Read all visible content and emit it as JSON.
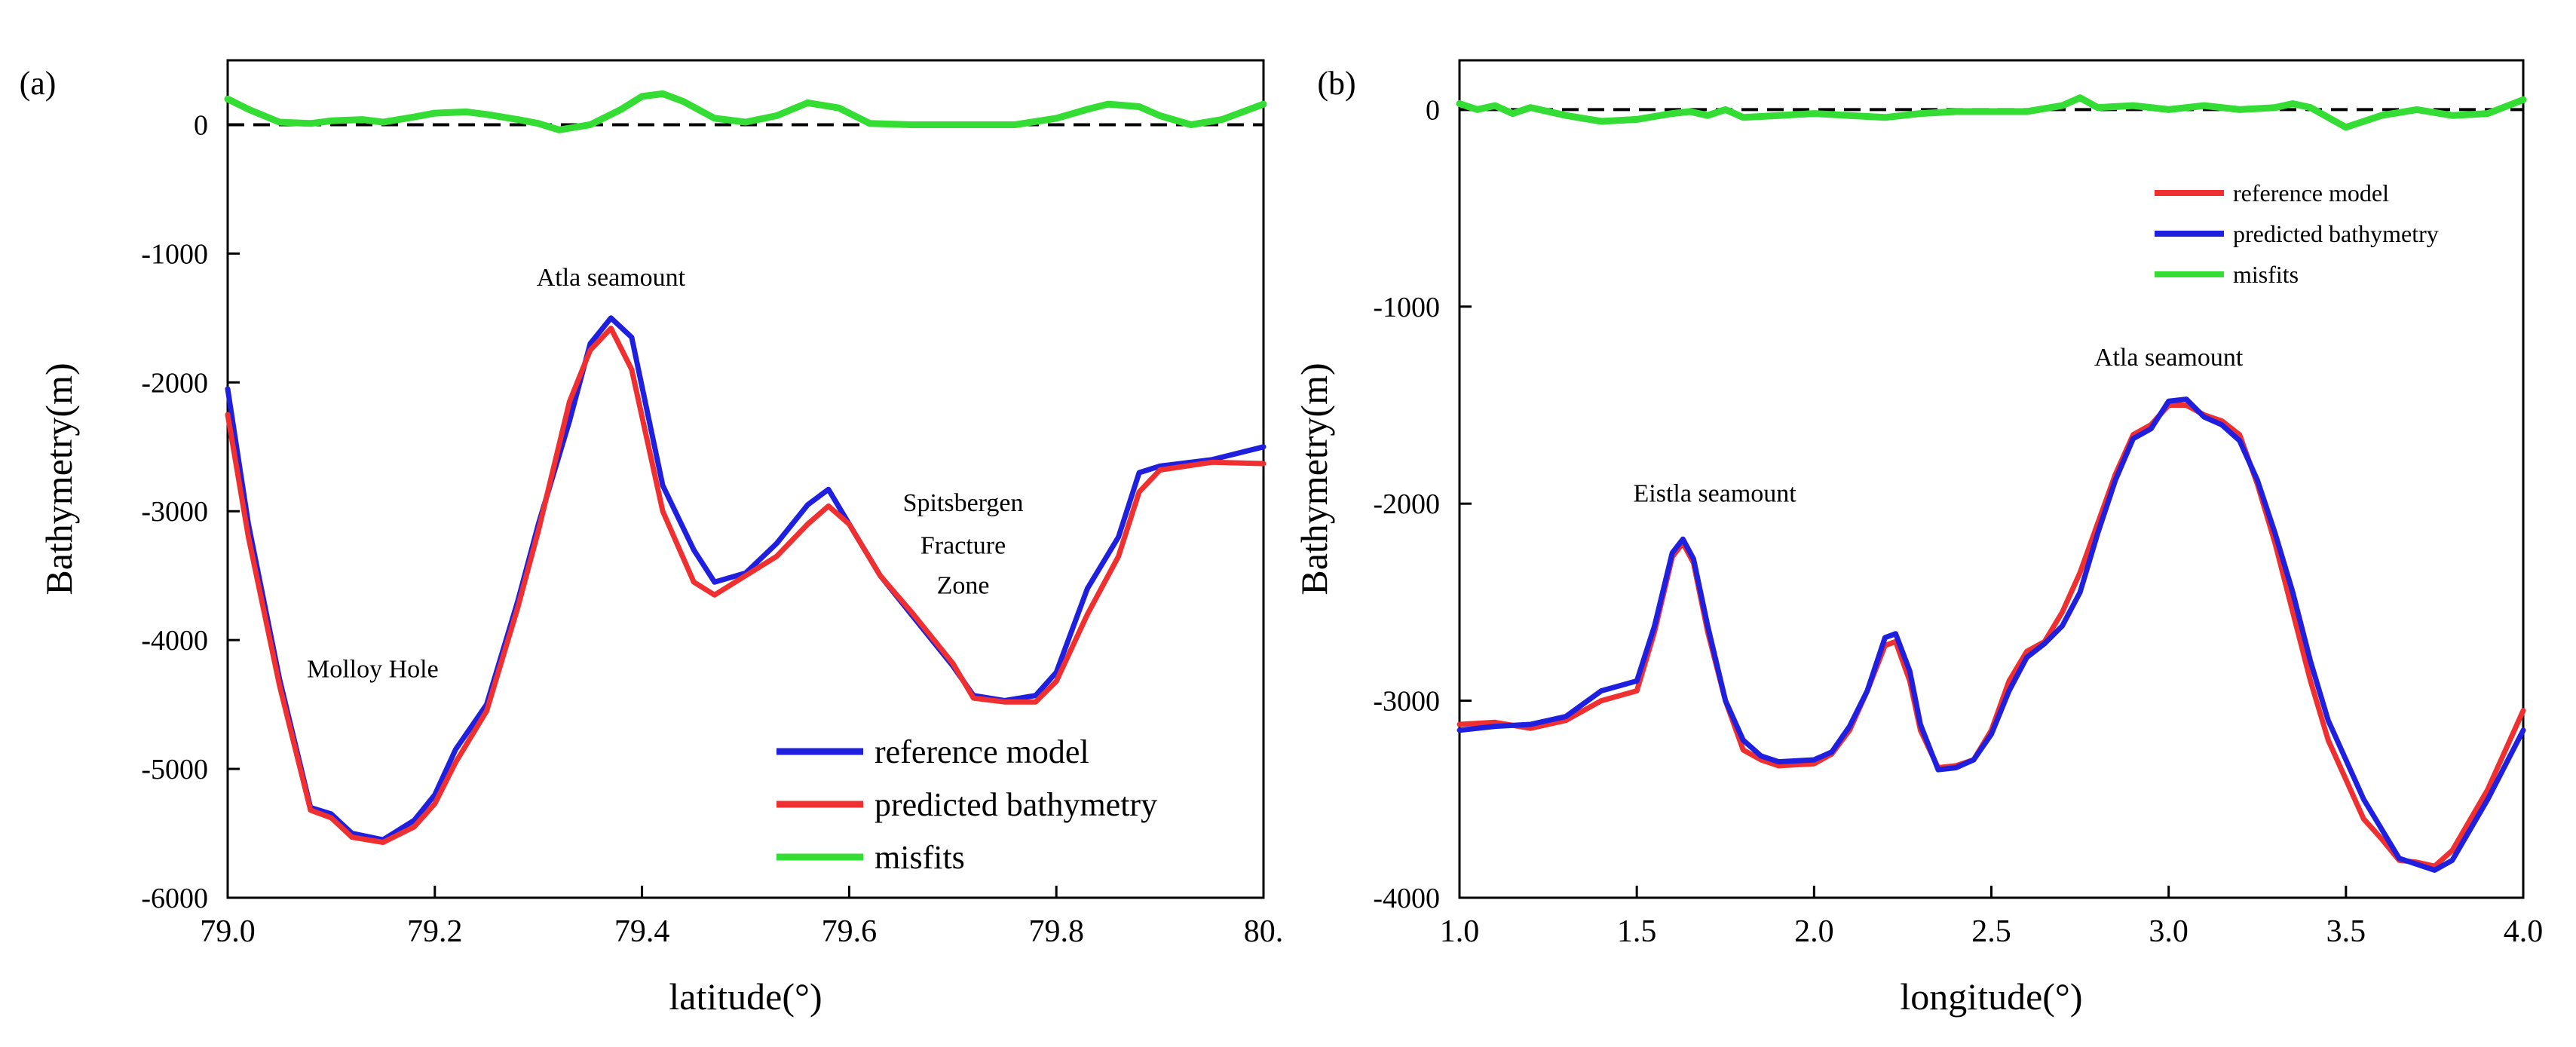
{
  "chart_data": [
    {
      "panel_label": "(a)",
      "type": "line",
      "xlabel": "latitude(°)",
      "ylabel": "Bathymetry(m)",
      "xlim": [
        79.0,
        80.0
      ],
      "ylim": [
        -6000,
        500
      ],
      "xticks": [
        79.0,
        79.2,
        79.4,
        79.6,
        79.8,
        80.0
      ],
      "xtick_labels": [
        "79.0",
        "79.2",
        "79.4",
        "79.6",
        "79.8",
        "80."
      ],
      "yticks": [
        -6000,
        -5000,
        -4000,
        -3000,
        -2000,
        -1000,
        0
      ],
      "ytick_labels": [
        "-6000",
        "-5000",
        "-4000",
        "-3000",
        "-2000",
        "-1000",
        "0"
      ],
      "zero_line": 0,
      "legend_position": "bottom-right",
      "annotations": [
        {
          "text": "Atla seamount",
          "x": 79.37,
          "y": -1250
        },
        {
          "text": "Spitsbergen",
          "x": 79.71,
          "y": -3000
        },
        {
          "text": "Fracture",
          "x": 79.71,
          "y": -3330
        },
        {
          "text": "Zone",
          "x": 79.71,
          "y": -3640
        },
        {
          "text": "Molloy Hole",
          "x": 79.14,
          "y": -4290
        }
      ],
      "series": [
        {
          "name": "reference model",
          "color": "#1f1fe0",
          "x": [
            79.0,
            79.02,
            79.05,
            79.08,
            79.1,
            79.12,
            79.15,
            79.18,
            79.2,
            79.22,
            79.25,
            79.28,
            79.3,
            79.33,
            79.35,
            79.37,
            79.39,
            79.42,
            79.45,
            79.47,
            79.5,
            79.53,
            79.56,
            79.58,
            79.6,
            79.63,
            79.66,
            79.7,
            79.72,
            79.75,
            79.78,
            79.8,
            79.83,
            79.86,
            79.88,
            79.9,
            79.95,
            80.0
          ],
          "y": [
            -2050,
            -3100,
            -4300,
            -5300,
            -5350,
            -5500,
            -5550,
            -5400,
            -5200,
            -4850,
            -4500,
            -3700,
            -3100,
            -2300,
            -1700,
            -1500,
            -1650,
            -2800,
            -3300,
            -3550,
            -3480,
            -3250,
            -2950,
            -2830,
            -3100,
            -3500,
            -3800,
            -4200,
            -4430,
            -4470,
            -4430,
            -4250,
            -3600,
            -3200,
            -2700,
            -2650,
            -2600,
            -2500
          ]
        },
        {
          "name": "predicted bathymetry",
          "color": "#f03030",
          "x": [
            79.0,
            79.02,
            79.05,
            79.08,
            79.1,
            79.12,
            79.15,
            79.18,
            79.2,
            79.22,
            79.25,
            79.28,
            79.3,
            79.33,
            79.35,
            79.37,
            79.39,
            79.42,
            79.45,
            79.47,
            79.5,
            79.53,
            79.56,
            79.58,
            79.6,
            79.63,
            79.66,
            79.7,
            79.72,
            79.75,
            79.78,
            79.8,
            79.83,
            79.86,
            79.88,
            79.9,
            79.95,
            80.0
          ],
          "y": [
            -2250,
            -3200,
            -4350,
            -5320,
            -5380,
            -5530,
            -5570,
            -5450,
            -5270,
            -4950,
            -4550,
            -3750,
            -3150,
            -2150,
            -1750,
            -1580,
            -1900,
            -3000,
            -3550,
            -3650,
            -3500,
            -3350,
            -3100,
            -2960,
            -3100,
            -3500,
            -3780,
            -4180,
            -4450,
            -4480,
            -4480,
            -4320,
            -3800,
            -3350,
            -2850,
            -2680,
            -2620,
            -2630
          ]
        },
        {
          "name": "misfits",
          "color": "#33dd33",
          "x": [
            79.0,
            79.02,
            79.05,
            79.08,
            79.1,
            79.13,
            79.15,
            79.18,
            79.2,
            79.23,
            79.25,
            79.28,
            79.3,
            79.32,
            79.35,
            79.38,
            79.4,
            79.42,
            79.44,
            79.47,
            79.5,
            79.53,
            79.56,
            79.59,
            79.62,
            79.66,
            79.7,
            79.73,
            79.76,
            79.8,
            79.83,
            79.85,
            79.88,
            79.9,
            79.93,
            79.96,
            80.0
          ],
          "y": [
            200,
            120,
            20,
            10,
            30,
            40,
            20,
            60,
            90,
            100,
            80,
            40,
            10,
            -40,
            0,
            120,
            220,
            240,
            180,
            50,
            20,
            70,
            170,
            130,
            10,
            0,
            0,
            0,
            0,
            50,
            120,
            160,
            140,
            70,
            0,
            40,
            160
          ]
        }
      ]
    },
    {
      "panel_label": "(b)",
      "type": "line",
      "xlabel": "longitude(°)",
      "ylabel": "Bathymetry(m)",
      "xlim": [
        1.0,
        4.0
      ],
      "ylim": [
        -4000,
        250
      ],
      "xticks": [
        1.0,
        1.5,
        2.0,
        2.5,
        3.0,
        3.5,
        4.0
      ],
      "xtick_labels": [
        "1.0",
        "1.5",
        "2.0",
        "2.5",
        "3.0",
        "3.5",
        "4.0"
      ],
      "yticks": [
        -4000,
        -3000,
        -2000,
        -1000,
        0
      ],
      "ytick_labels": [
        "-4000",
        "-3000",
        "-2000",
        "-1000",
        "0"
      ],
      "zero_line": 0,
      "legend_position": "top-right",
      "annotations": [
        {
          "text": "Eistla seamount",
          "x": 1.72,
          "y": -1990
        },
        {
          "text": "Atla seamount",
          "x": 3.0,
          "y": -1300
        }
      ],
      "series": [
        {
          "name": "reference model",
          "color": "#f03030",
          "x": [
            1.0,
            1.1,
            1.2,
            1.3,
            1.4,
            1.5,
            1.55,
            1.6,
            1.63,
            1.66,
            1.7,
            1.75,
            1.8,
            1.85,
            1.9,
            2.0,
            2.05,
            2.1,
            2.15,
            2.2,
            2.23,
            2.27,
            2.3,
            2.35,
            2.4,
            2.45,
            2.5,
            2.55,
            2.6,
            2.65,
            2.7,
            2.75,
            2.8,
            2.85,
            2.9,
            2.95,
            3.0,
            3.05,
            3.1,
            3.15,
            3.2,
            3.25,
            3.3,
            3.35,
            3.4,
            3.45,
            3.5,
            3.55,
            3.6,
            3.65,
            3.7,
            3.75,
            3.8,
            3.9,
            4.0
          ],
          "y": [
            -3120,
            -3110,
            -3140,
            -3100,
            -3000,
            -2950,
            -2650,
            -2270,
            -2200,
            -2300,
            -2650,
            -3000,
            -3250,
            -3300,
            -3330,
            -3320,
            -3270,
            -3150,
            -2950,
            -2720,
            -2700,
            -2900,
            -3150,
            -3340,
            -3330,
            -3300,
            -3150,
            -2900,
            -2750,
            -2700,
            -2550,
            -2350,
            -2100,
            -1850,
            -1650,
            -1600,
            -1500,
            -1500,
            -1550,
            -1580,
            -1650,
            -1900,
            -2200,
            -2550,
            -2900,
            -3200,
            -3400,
            -3600,
            -3700,
            -3810,
            -3820,
            -3840,
            -3760,
            -3450,
            -3050
          ]
        },
        {
          "name": "predicted bathymetry",
          "color": "#1f1fe0",
          "x": [
            1.0,
            1.1,
            1.2,
            1.3,
            1.4,
            1.5,
            1.55,
            1.6,
            1.63,
            1.66,
            1.7,
            1.75,
            1.8,
            1.85,
            1.9,
            2.0,
            2.05,
            2.1,
            2.15,
            2.2,
            2.23,
            2.27,
            2.3,
            2.35,
            2.4,
            2.45,
            2.5,
            2.55,
            2.6,
            2.65,
            2.7,
            2.75,
            2.8,
            2.85,
            2.9,
            2.95,
            3.0,
            3.05,
            3.1,
            3.15,
            3.2,
            3.25,
            3.3,
            3.35,
            3.4,
            3.45,
            3.5,
            3.55,
            3.6,
            3.65,
            3.7,
            3.75,
            3.8,
            3.9,
            4.0
          ],
          "y": [
            -3150,
            -3130,
            -3120,
            -3080,
            -2950,
            -2900,
            -2620,
            -2250,
            -2180,
            -2280,
            -2620,
            -3000,
            -3200,
            -3280,
            -3310,
            -3300,
            -3260,
            -3130,
            -2950,
            -2680,
            -2660,
            -2850,
            -3120,
            -3350,
            -3340,
            -3300,
            -3170,
            -2950,
            -2780,
            -2710,
            -2620,
            -2450,
            -2150,
            -1880,
            -1670,
            -1620,
            -1480,
            -1470,
            -1560,
            -1600,
            -1680,
            -1880,
            -2150,
            -2450,
            -2800,
            -3100,
            -3300,
            -3500,
            -3650,
            -3800,
            -3830,
            -3860,
            -3810,
            -3500,
            -3150
          ]
        },
        {
          "name": "misfits",
          "color": "#33dd33",
          "x": [
            1.0,
            1.05,
            1.1,
            1.15,
            1.2,
            1.3,
            1.4,
            1.5,
            1.6,
            1.65,
            1.7,
            1.75,
            1.8,
            1.9,
            2.0,
            2.1,
            2.2,
            2.3,
            2.4,
            2.5,
            2.6,
            2.7,
            2.75,
            2.8,
            2.9,
            3.0,
            3.1,
            3.2,
            3.3,
            3.35,
            3.4,
            3.45,
            3.5,
            3.6,
            3.7,
            3.8,
            3.9,
            4.0
          ],
          "y": [
            30,
            0,
            20,
            -20,
            10,
            -30,
            -60,
            -50,
            -20,
            -10,
            -30,
            0,
            -40,
            -30,
            -20,
            -30,
            -40,
            -20,
            -10,
            -10,
            -10,
            20,
            60,
            10,
            20,
            0,
            20,
            0,
            10,
            30,
            10,
            -40,
            -90,
            -30,
            0,
            -30,
            -20,
            50
          ]
        }
      ]
    }
  ]
}
